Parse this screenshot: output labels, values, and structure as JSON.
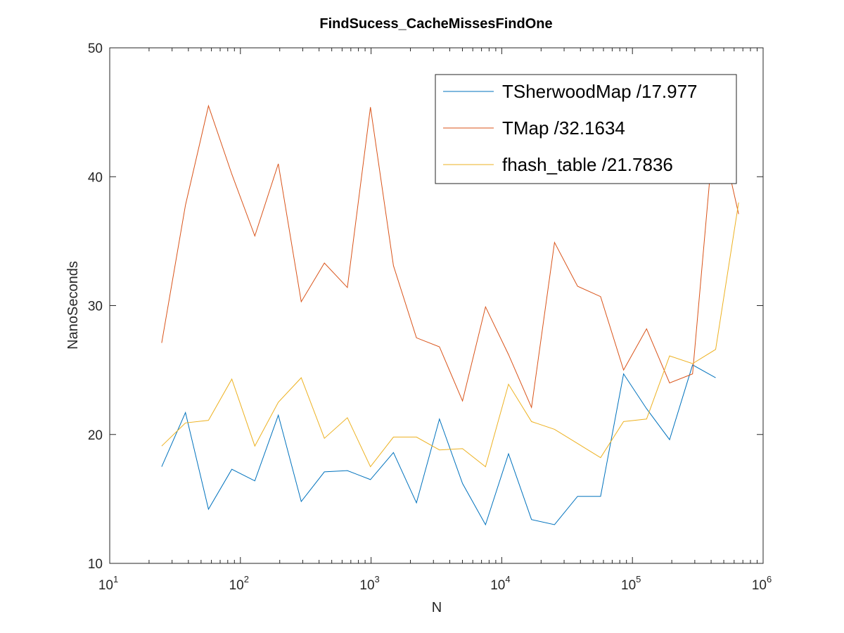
{
  "chart_data": {
    "type": "line",
    "title": "FindSucess_CacheMissesFindOne",
    "xlabel": "N",
    "ylabel": "NanoSeconds",
    "xscale": "log",
    "xlim": [
      10,
      1000000
    ],
    "ylim": [
      10,
      50
    ],
    "grid": false,
    "legend_position": "top-right",
    "x_ticks": [
      {
        "base": "10",
        "exp": "1"
      },
      {
        "base": "10",
        "exp": "2"
      },
      {
        "base": "10",
        "exp": "3"
      },
      {
        "base": "10",
        "exp": "4"
      },
      {
        "base": "10",
        "exp": "5"
      },
      {
        "base": "10",
        "exp": "6"
      }
    ],
    "y_ticks": [
      "10",
      "20",
      "30",
      "40",
      "50"
    ],
    "series": [
      {
        "name": "TSherwoodMap /17.977",
        "color": "#0072bd",
        "x": [
          25,
          38,
          57,
          86,
          129,
          195,
          292,
          439,
          659,
          989,
          1483,
          2225,
          3337,
          5006,
          7509,
          11264,
          16896,
          25344,
          38016,
          57024,
          85536,
          128304,
          192456,
          288684,
          433026
        ],
        "y": [
          17.5,
          21.7,
          14.2,
          17.3,
          16.4,
          21.5,
          14.8,
          17.1,
          17.2,
          16.5,
          18.6,
          14.7,
          21.2,
          16.2,
          13.0,
          18.5,
          13.4,
          13.0,
          15.2,
          15.2,
          24.7,
          22.0,
          19.6,
          25.4,
          24.4
        ]
      },
      {
        "name": "TMap /32.1634",
        "color": "#d95319",
        "x": [
          25,
          38,
          57,
          86,
          129,
          195,
          292,
          439,
          659,
          989,
          1483,
          2225,
          3337,
          5006,
          7509,
          11264,
          16896,
          25344,
          38016,
          57024,
          85536,
          128304,
          192456,
          288684,
          433026,
          649539
        ],
        "y": [
          27.1,
          37.8,
          45.5,
          40.2,
          35.4,
          41.0,
          30.3,
          33.3,
          31.4,
          45.4,
          33.1,
          27.5,
          26.8,
          22.6,
          29.9,
          26.2,
          22.1,
          34.9,
          31.5,
          30.7,
          25.0,
          28.2,
          24.0,
          24.7,
          45.0,
          37.1
        ]
      },
      {
        "name": "fhash_table /21.7836",
        "color": "#edb120",
        "x": [
          25,
          38,
          57,
          86,
          129,
          195,
          292,
          439,
          659,
          989,
          1483,
          2225,
          3337,
          5006,
          7509,
          11264,
          16896,
          25344,
          38016,
          57024,
          85536,
          128304,
          192456,
          288684,
          433026,
          649539
        ],
        "y": [
          19.1,
          20.9,
          21.1,
          24.3,
          19.1,
          22.5,
          24.4,
          19.7,
          21.3,
          17.5,
          19.8,
          19.8,
          18.8,
          18.9,
          17.5,
          23.9,
          21.0,
          20.4,
          19.3,
          18.2,
          21.0,
          21.2,
          26.1,
          25.5,
          26.6,
          38.0
        ]
      }
    ]
  }
}
